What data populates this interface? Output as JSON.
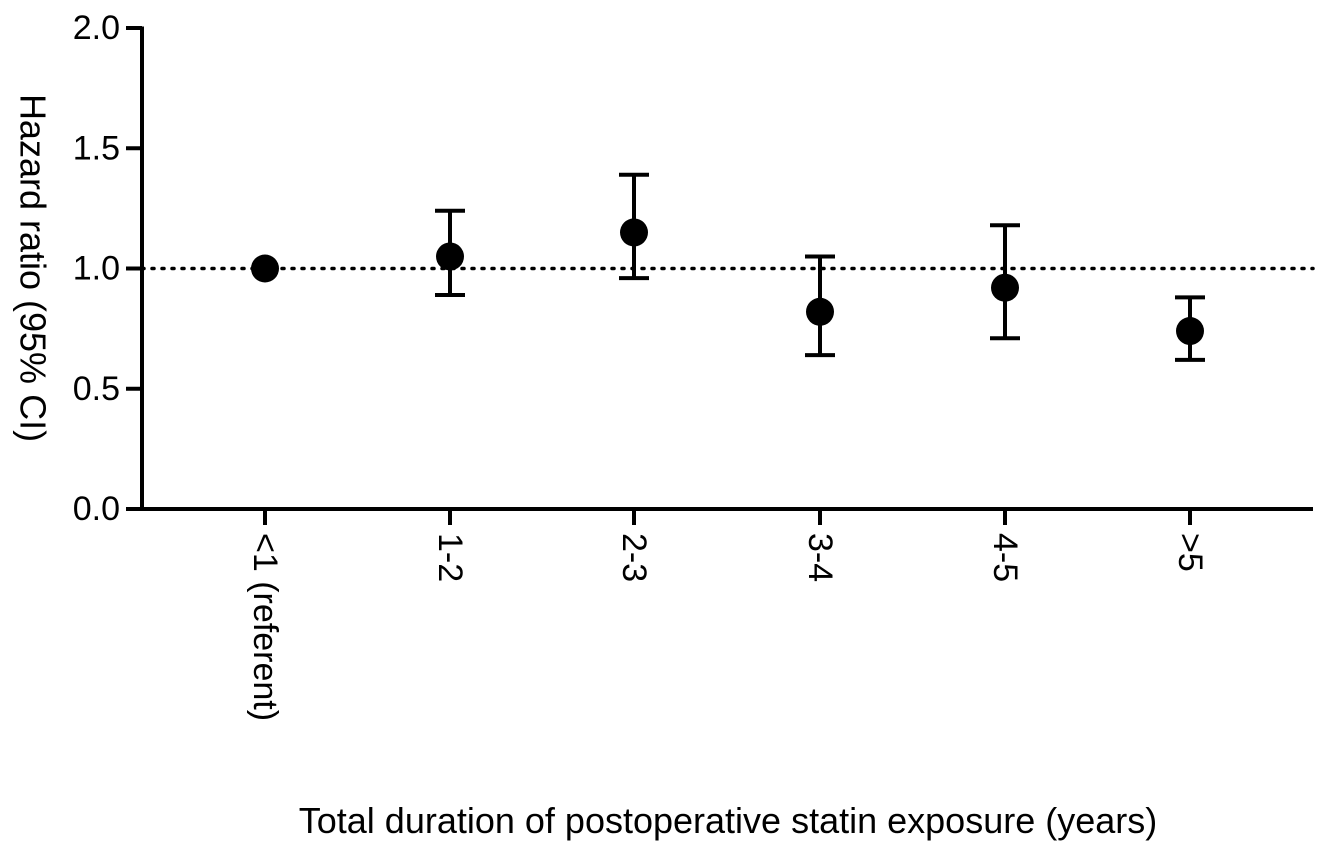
{
  "chart_data": {
    "type": "scatter",
    "subtype": "point-estimate-with-error-bars",
    "title": "",
    "xlabel": "Total duration of postoperative statin exposure (years)",
    "ylabel": "Hazard ratio (95% CI)",
    "categories": [
      "<1 (referent)",
      "1-2",
      "2-3",
      "3-4",
      "4-5",
      ">5"
    ],
    "series": [
      {
        "values": [
          1.0,
          1.05,
          1.15,
          0.82,
          0.92,
          0.74
        ],
        "ci_lower": [
          null,
          0.89,
          0.96,
          0.64,
          0.71,
          0.62
        ],
        "ci_upper": [
          null,
          1.24,
          1.39,
          1.05,
          1.18,
          0.88
        ]
      }
    ],
    "ylim": [
      0.0,
      2.0
    ],
    "yticks": [
      "0.0",
      "0.5",
      "1.0",
      "1.5",
      "2.0"
    ],
    "reference_line": {
      "y": 1.0,
      "style": "dotted"
    },
    "grid": false,
    "legend": "none",
    "x_tick_label_orientation": "vertical",
    "colors": {
      "marker": "#000000",
      "axis": "#000000",
      "reference_line": "#000000"
    }
  }
}
